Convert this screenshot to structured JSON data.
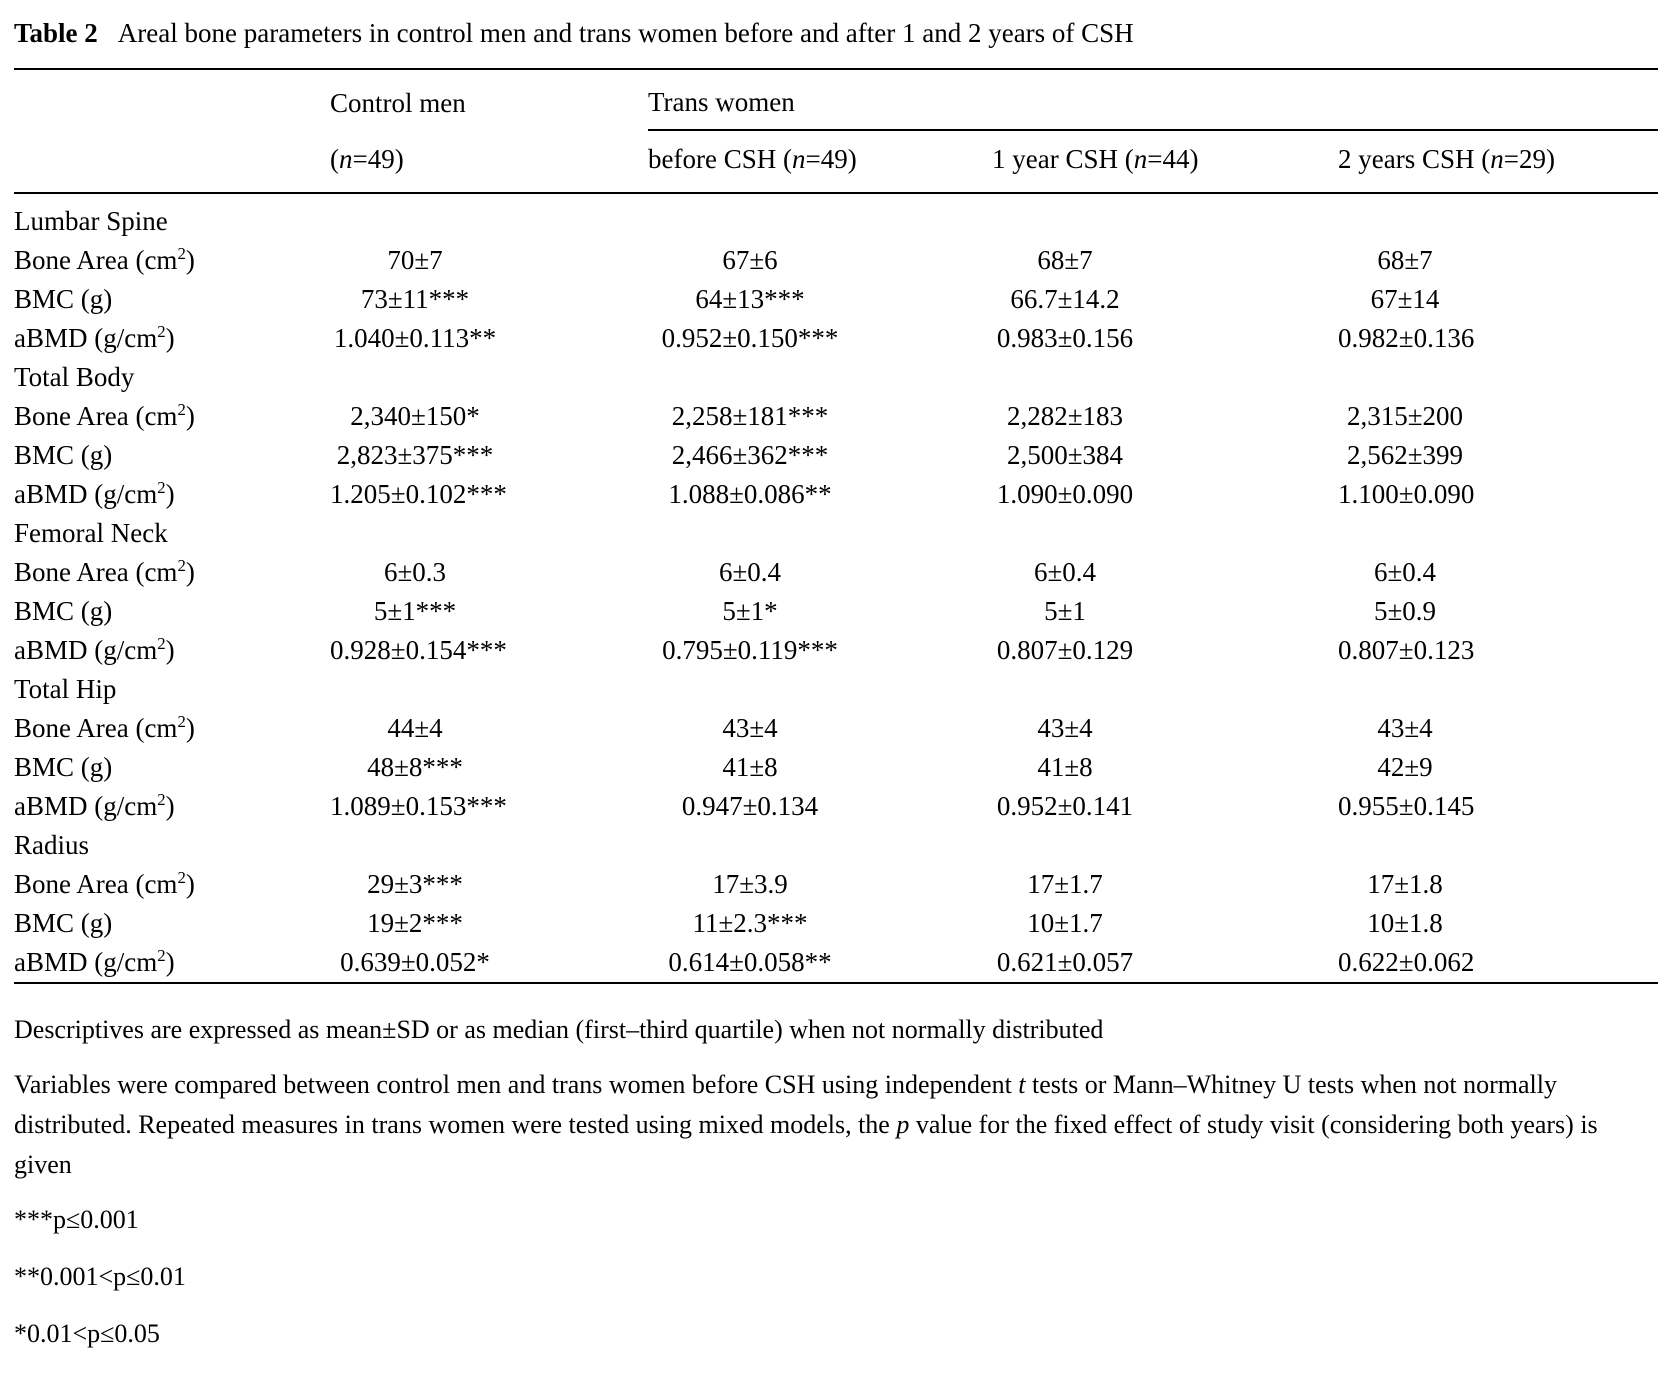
{
  "caption": {
    "label": "Table 2",
    "title": "Areal bone parameters in control men and trans women before and after 1 and 2 years of CSH"
  },
  "table": {
    "groups": [
      "Control men",
      "Trans women"
    ],
    "subheaders": [
      {
        "pre": "(",
        "n": "n",
        "post": "=49)"
      },
      {
        "pre": "before CSH (",
        "n": "n",
        "post": "=49)"
      },
      {
        "pre": "1 year CSH (",
        "n": "n",
        "post": "=44)"
      },
      {
        "pre": "2 years CSH (",
        "n": "n",
        "post": "=29)"
      }
    ],
    "sections": [
      {
        "name": "Lumbar Spine",
        "rows": [
          {
            "label": {
              "pre": "Bone Area (cm",
              "sup": "2",
              "post": ")"
            },
            "values": [
              "70±7",
              "67±6",
              "68±7",
              "68±7"
            ]
          },
          {
            "label": {
              "pre": "BMC (g)",
              "sup": "",
              "post": ""
            },
            "values": [
              "73±11***",
              "64±13***",
              "66.7±14.2",
              "67±14"
            ]
          },
          {
            "label": {
              "pre": "aBMD (g/cm",
              "sup": "2",
              "post": ")"
            },
            "values": [
              "1.040±0.113**",
              "0.952±0.150***",
              "0.983±0.156",
              "0.982±0.136"
            ]
          }
        ]
      },
      {
        "name": "Total Body",
        "rows": [
          {
            "label": {
              "pre": "Bone Area (cm",
              "sup": "2",
              "post": ")"
            },
            "values": [
              "2,340±150*",
              "2,258±181***",
              "2,282±183",
              "2,315±200"
            ]
          },
          {
            "label": {
              "pre": "BMC (g)",
              "sup": "",
              "post": ""
            },
            "values": [
              "2,823±375***",
              "2,466±362***",
              "2,500±384",
              "2,562±399"
            ]
          },
          {
            "label": {
              "pre": "aBMD (g/cm",
              "sup": "2",
              "post": ")"
            },
            "values": [
              "1.205±0.102***",
              "1.088±0.086**",
              "1.090±0.090",
              "1.100±0.090"
            ]
          }
        ]
      },
      {
        "name": "Femoral Neck",
        "rows": [
          {
            "label": {
              "pre": "Bone Area (cm",
              "sup": "2",
              "post": ")"
            },
            "values": [
              "6±0.3",
              "6±0.4",
              "6±0.4",
              "6±0.4"
            ]
          },
          {
            "label": {
              "pre": "BMC (g)",
              "sup": "",
              "post": ""
            },
            "values": [
              "5±1***",
              "5±1*",
              "5±1",
              "5±0.9"
            ]
          },
          {
            "label": {
              "pre": "aBMD (g/cm",
              "sup": "2",
              "post": ")"
            },
            "values": [
              "0.928±0.154***",
              "0.795±0.119***",
              "0.807±0.129",
              "0.807±0.123"
            ]
          }
        ]
      },
      {
        "name": "Total Hip",
        "rows": [
          {
            "label": {
              "pre": "Bone Area (cm",
              "sup": "2",
              "post": ")"
            },
            "values": [
              "44±4",
              "43±4",
              "43±4",
              "43±4"
            ]
          },
          {
            "label": {
              "pre": "BMC (g)",
              "sup": "",
              "post": ""
            },
            "values": [
              "48±8***",
              "41±8",
              "41±8",
              "42±9"
            ]
          },
          {
            "label": {
              "pre": "aBMD (g/cm",
              "sup": "2",
              "post": ")"
            },
            "values": [
              "1.089±0.153***",
              "0.947±0.134",
              "0.952±0.141",
              "0.955±0.145"
            ]
          }
        ]
      },
      {
        "name": "Radius",
        "rows": [
          {
            "label": {
              "pre": "Bone Area (cm",
              "sup": "2",
              "post": ")"
            },
            "values": [
              "29±3***",
              "17±3.9",
              "17±1.7",
              "17±1.8"
            ]
          },
          {
            "label": {
              "pre": "BMC (g)",
              "sup": "",
              "post": ""
            },
            "values": [
              "19±2***",
              "11±2.3***",
              "10±1.7",
              "10±1.8"
            ]
          },
          {
            "label": {
              "pre": "aBMD (g/cm",
              "sup": "2",
              "post": ")"
            },
            "values": [
              "0.639±0.052*",
              "0.614±0.058**",
              "0.621±0.057",
              "0.622±0.062"
            ]
          }
        ]
      }
    ]
  },
  "footnotes": {
    "fn1": [
      {
        "t": "Descriptives are expressed as mean±SD or as median (first–third quartile) when not normally distributed",
        "i": false
      }
    ],
    "fn2": [
      {
        "t": "Variables were compared between control men and trans women before CSH using independent ",
        "i": false
      },
      {
        "t": "t",
        "i": true
      },
      {
        "t": " tests or Mann–Whitney U tests when not normally distributed. Repeated measures in trans women were tested using mixed models, the ",
        "i": false
      },
      {
        "t": "p",
        "i": true
      },
      {
        "t": " value for the fixed effect of study visit (considering both years) is given",
        "i": false
      }
    ],
    "sig1": "***p≤0.001",
    "sig2": "**0.001<p≤0.01",
    "sig3": "*0.01<p≤0.05"
  }
}
